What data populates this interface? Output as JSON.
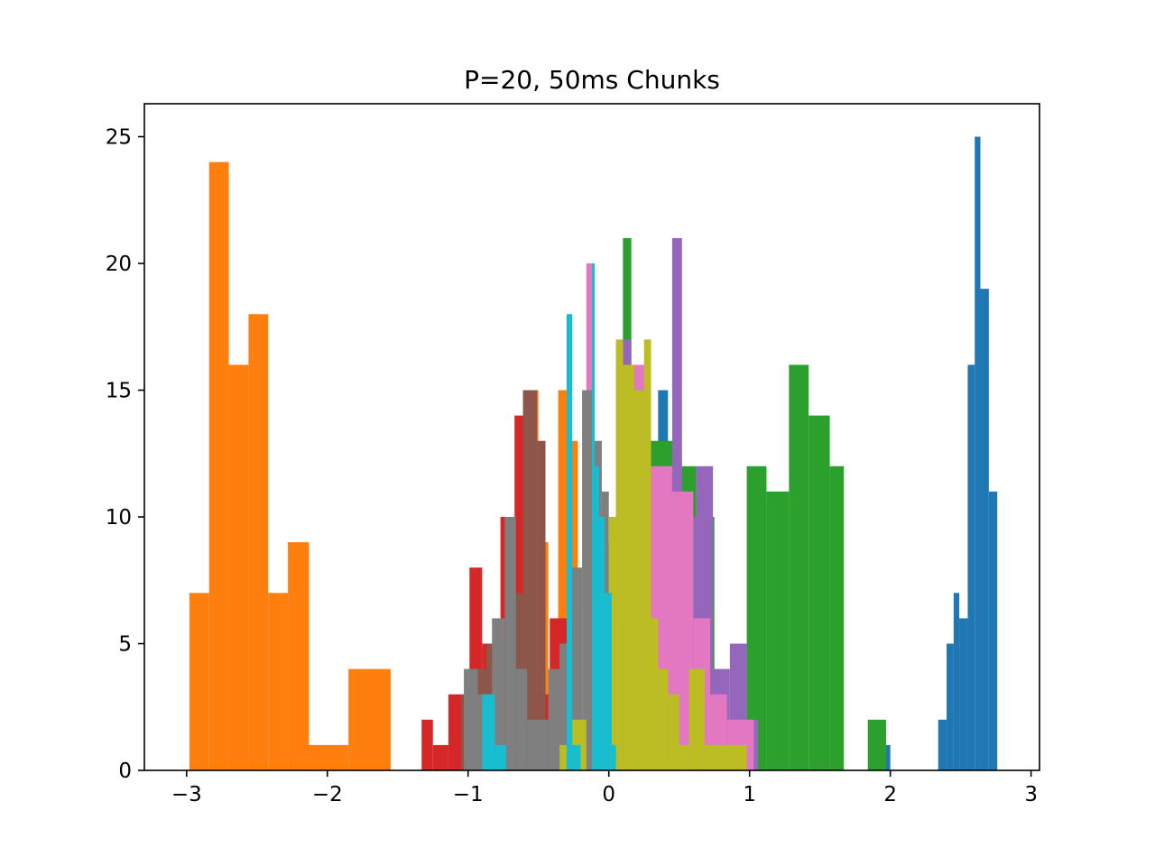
{
  "chart_data": {
    "type": "histogram",
    "title": "P=20, 50ms Chunks",
    "xlabel": "",
    "ylabel": "",
    "xlim": [
      -3.3,
      3.06
    ],
    "ylim": [
      0,
      26.3
    ],
    "x_ticks": [
      -3,
      -2,
      -1,
      0,
      1,
      2,
      3
    ],
    "x_tick_labels": [
      "−3",
      "−2",
      "−1",
      "0",
      "1",
      "2",
      "3"
    ],
    "y_ticks": [
      0,
      5,
      10,
      15,
      20,
      25
    ],
    "y_tick_labels": [
      "0",
      "5",
      "10",
      "15",
      "20",
      "25"
    ],
    "legend": "none",
    "grid": false,
    "series": [
      {
        "color": "#1f77b4",
        "bins": [
          [
            0.35,
            0.42,
            15
          ],
          [
            0.42,
            0.49,
            12
          ],
          [
            0.49,
            0.57,
            9
          ],
          [
            0.57,
            0.64,
            7
          ],
          [
            0.57,
            0.78,
            3
          ],
          [
            0.78,
            0.84,
            2
          ],
          [
            1.9,
            2.0,
            1
          ],
          [
            2.34,
            2.4,
            2
          ],
          [
            2.4,
            2.45,
            5
          ],
          [
            2.45,
            2.49,
            7
          ],
          [
            2.49,
            2.55,
            6
          ],
          [
            2.55,
            2.6,
            16
          ],
          [
            2.6,
            2.64,
            25
          ],
          [
            2.64,
            2.7,
            19
          ],
          [
            2.7,
            2.76,
            11
          ]
        ]
      },
      {
        "color": "#ff7f0e",
        "bins": [
          [
            -2.98,
            -2.84,
            7
          ],
          [
            -2.84,
            -2.7,
            24
          ],
          [
            -2.7,
            -2.56,
            16
          ],
          [
            -2.56,
            -2.42,
            18
          ],
          [
            -2.42,
            -2.28,
            7
          ],
          [
            -2.28,
            -2.13,
            9
          ],
          [
            -2.13,
            -1.85,
            1
          ],
          [
            -1.85,
            -1.55,
            4
          ],
          [
            -0.69,
            -0.62,
            3
          ],
          [
            -0.62,
            -0.57,
            12
          ],
          [
            -0.57,
            -0.5,
            15
          ],
          [
            -0.5,
            -0.43,
            9
          ],
          [
            -0.43,
            -0.36,
            2
          ],
          [
            -0.36,
            -0.29,
            15
          ],
          [
            -0.29,
            -0.22,
            13
          ]
        ]
      },
      {
        "color": "#2ca02c",
        "bins": [
          [
            0.1,
            0.16,
            21
          ],
          [
            0.16,
            0.3,
            12
          ],
          [
            0.3,
            0.48,
            13
          ],
          [
            0.48,
            0.62,
            12
          ],
          [
            0.62,
            0.75,
            10
          ],
          [
            0.75,
            0.86,
            2
          ],
          [
            0.86,
            0.98,
            1
          ],
          [
            0.98,
            1.12,
            12
          ],
          [
            1.12,
            1.28,
            11
          ],
          [
            1.28,
            1.42,
            16
          ],
          [
            1.42,
            1.57,
            14
          ],
          [
            1.57,
            1.67,
            12
          ],
          [
            1.84,
            1.97,
            2
          ]
        ]
      },
      {
        "color": "#d62728",
        "bins": [
          [
            -1.33,
            -1.25,
            2
          ],
          [
            -1.25,
            -1.14,
            1
          ],
          [
            -1.14,
            -0.99,
            3
          ],
          [
            -0.99,
            -0.9,
            8
          ],
          [
            -0.9,
            -0.77,
            5
          ],
          [
            -0.77,
            -0.67,
            10
          ],
          [
            -0.67,
            -0.58,
            14
          ],
          [
            -0.58,
            -0.42,
            3
          ],
          [
            -0.42,
            -0.29,
            6
          ],
          [
            -0.29,
            -0.2,
            5
          ]
        ]
      },
      {
        "color": "#9467bd",
        "bins": [
          [
            -0.4,
            -0.32,
            2
          ],
          [
            0.1,
            0.16,
            17
          ],
          [
            0.45,
            0.52,
            21
          ],
          [
            0.52,
            0.62,
            10
          ],
          [
            0.62,
            0.74,
            12
          ],
          [
            0.74,
            0.86,
            4
          ],
          [
            0.86,
            0.98,
            5
          ],
          [
            0.98,
            1.06,
            2
          ]
        ]
      },
      {
        "color": "#8c564b",
        "bins": [
          [
            -1.05,
            -0.97,
            3
          ],
          [
            -0.97,
            -0.87,
            4
          ],
          [
            -0.87,
            -0.72,
            5
          ],
          [
            -0.72,
            -0.61,
            7
          ],
          [
            -0.61,
            -0.51,
            15
          ],
          [
            -0.51,
            -0.45,
            13
          ],
          [
            -0.45,
            -0.39,
            2
          ]
        ]
      },
      {
        "color": "#e377c2",
        "bins": [
          [
            -0.16,
            -0.1,
            20
          ],
          [
            0.1,
            0.16,
            15
          ],
          [
            0.16,
            0.27,
            16
          ],
          [
            0.27,
            0.45,
            12
          ],
          [
            0.45,
            0.6,
            11
          ],
          [
            0.6,
            0.72,
            6
          ],
          [
            0.72,
            0.84,
            3
          ],
          [
            0.84,
            1.03,
            2
          ]
        ]
      },
      {
        "color": "#7f7f7f",
        "bins": [
          [
            -1.03,
            -0.93,
            4
          ],
          [
            -0.93,
            -0.83,
            3
          ],
          [
            -0.83,
            -0.74,
            6
          ],
          [
            -0.74,
            -0.66,
            10
          ],
          [
            -0.66,
            -0.58,
            4
          ],
          [
            -0.58,
            -0.43,
            2
          ],
          [
            -0.43,
            -0.35,
            4
          ],
          [
            -0.35,
            -0.27,
            5
          ],
          [
            -0.27,
            -0.19,
            8
          ],
          [
            -0.19,
            -0.11,
            15
          ],
          [
            -0.11,
            -0.05,
            13
          ],
          [
            -0.05,
            0.0,
            11
          ],
          [
            0.0,
            0.05,
            9
          ],
          [
            0.05,
            0.1,
            6
          ]
        ]
      },
      {
        "color": "#bcbd22",
        "bins": [
          [
            -0.35,
            -0.26,
            1
          ],
          [
            -0.26,
            -0.16,
            2
          ],
          [
            -0.05,
            0.0,
            1
          ],
          [
            0.0,
            0.05,
            10
          ],
          [
            0.05,
            0.1,
            17
          ],
          [
            0.1,
            0.18,
            16
          ],
          [
            0.18,
            0.25,
            15
          ],
          [
            0.25,
            0.3,
            17
          ],
          [
            0.3,
            0.35,
            6
          ],
          [
            0.35,
            0.42,
            4
          ],
          [
            0.42,
            0.5,
            3
          ],
          [
            0.5,
            0.57,
            1
          ],
          [
            0.57,
            0.68,
            4
          ],
          [
            0.68,
            0.88,
            1
          ],
          [
            0.88,
            0.98,
            1
          ]
        ]
      },
      {
        "color": "#17becf",
        "bins": [
          [
            -0.9,
            -0.81,
            3
          ],
          [
            -0.81,
            -0.73,
            1
          ],
          [
            -0.3,
            -0.26,
            18
          ],
          [
            -0.26,
            -0.2,
            1
          ],
          [
            -0.12,
            -0.1,
            20
          ],
          [
            -0.1,
            -0.07,
            12
          ],
          [
            -0.07,
            -0.03,
            10
          ],
          [
            -0.03,
            0.02,
            7
          ],
          [
            0.02,
            0.05,
            1
          ]
        ]
      }
    ]
  }
}
